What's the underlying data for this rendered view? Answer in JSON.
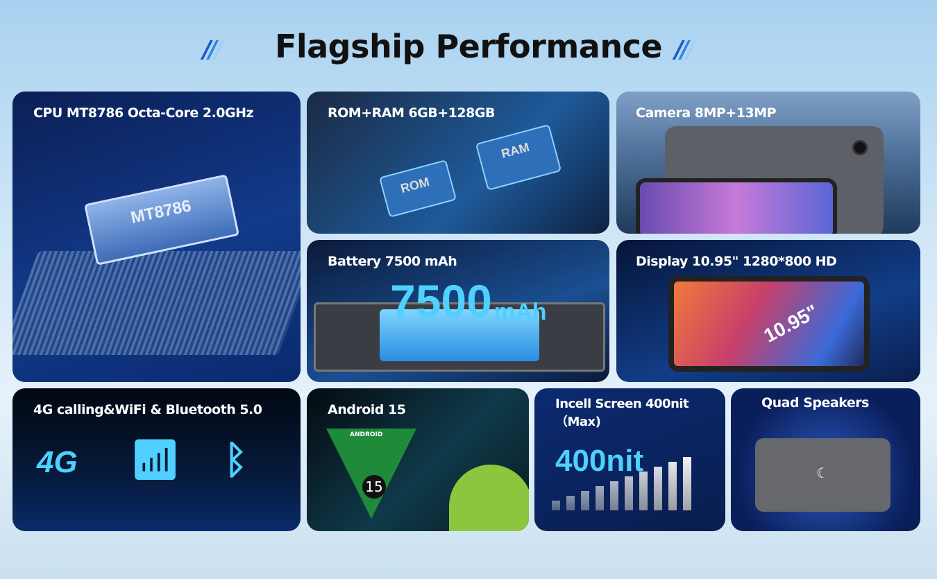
{
  "title": "Flagship Performance",
  "cards": {
    "cpu": {
      "label": "CPU MT8786 Octa-Core 2.0GHz",
      "chip": "MT8786"
    },
    "memory": {
      "label": "ROM+RAM 6GB+128GB",
      "rom": "ROM",
      "ram": "RAM"
    },
    "camera": {
      "label": "Camera 8MP+13MP"
    },
    "battery": {
      "label": "Battery 7500 mAh",
      "big": "7500",
      "unit": "mAh"
    },
    "display": {
      "label": "Display 10.95\" 1280*800 HD",
      "size": "10.95\""
    },
    "connectivity": {
      "label": "4G calling&WiFi & Bluetooth 5.0",
      "g4": "4G"
    },
    "android": {
      "label": "Android 15",
      "badge": "ANDROID",
      "version": "15"
    },
    "screen": {
      "label": "Incell Screen 400nit",
      "label2": "（Max)",
      "big": "400nit"
    },
    "speakers": {
      "label": "Quad Speakers"
    }
  },
  "colors": {
    "accent": "#4fd0ff",
    "card": "#0a1e4f",
    "android_green": "#8cc63f"
  }
}
